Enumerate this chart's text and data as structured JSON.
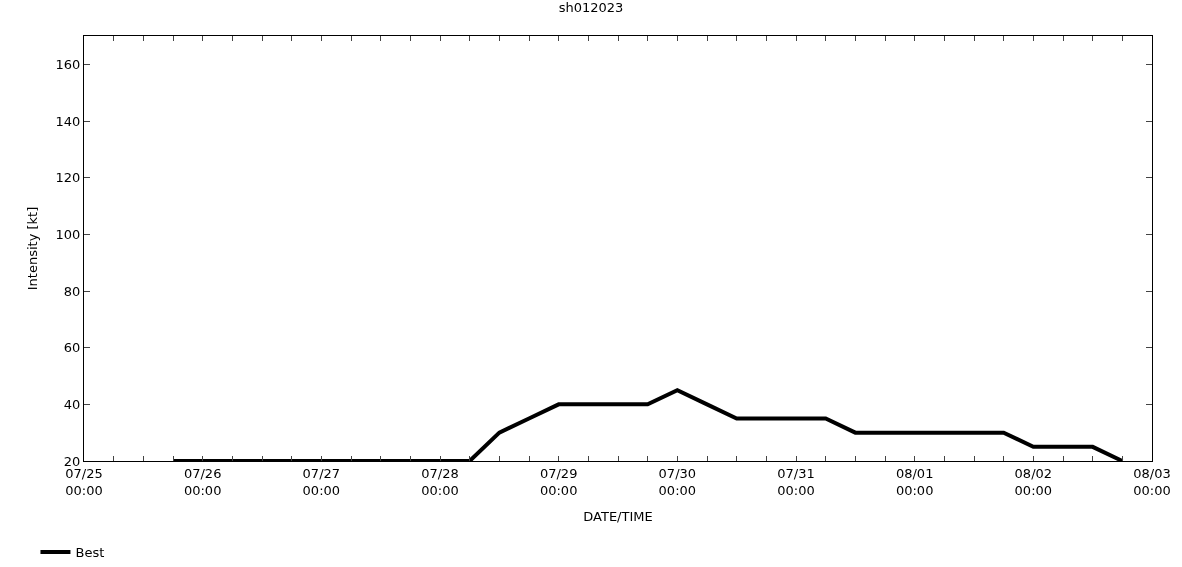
{
  "chart_data": {
    "type": "line",
    "title": "sh012023",
    "xlabel": "DATE/TIME",
    "ylabel": "Intensity [kt]",
    "x": [
      "--07-25T18:00",
      "--07-28T06:00",
      "--07-28T12:00",
      "--07-28T18:00",
      "--07-29T00:00",
      "--07-29T18:00",
      "--07-30T00:00",
      "--07-30T06:00",
      "--07-30T12:00",
      "--07-31T06:00",
      "--07-31T12:00",
      "--08-01T18:00",
      "--08-02T00:00",
      "--08-02T12:00",
      "--08-02T18:00"
    ],
    "series": [
      {
        "name": "Best",
        "color": "#000000",
        "values": [
          20,
          20,
          30,
          35,
          40,
          40,
          45,
          40,
          35,
          35,
          30,
          30,
          25,
          25,
          20
        ]
      }
    ],
    "xlim": [
      "--07-25T00:00",
      "--08-03T00:00"
    ],
    "xticks": [
      {
        "value": "--07-25T00:00",
        "label": "07/25\n00:00"
      },
      {
        "value": "--07-25T06:00",
        "label": null
      },
      {
        "value": "--07-25T12:00",
        "label": null
      },
      {
        "value": "--07-25T18:00",
        "label": null
      },
      {
        "value": "--07-26T00:00",
        "label": "07/26\n00:00"
      },
      {
        "value": "--07-26T06:00",
        "label": null
      },
      {
        "value": "--07-26T12:00",
        "label": null
      },
      {
        "value": "--07-26T18:00",
        "label": null
      },
      {
        "value": "--07-27T00:00",
        "label": "07/27\n00:00"
      },
      {
        "value": "--07-27T06:00",
        "label": null
      },
      {
        "value": "--07-27T12:00",
        "label": null
      },
      {
        "value": "--07-27T18:00",
        "label": null
      },
      {
        "value": "--07-28T00:00",
        "label": "07/28\n00:00"
      },
      {
        "value": "--07-28T06:00",
        "label": null
      },
      {
        "value": "--07-28T12:00",
        "label": null
      },
      {
        "value": "--07-28T18:00",
        "label": null
      },
      {
        "value": "--07-29T00:00",
        "label": "07/29\n00:00"
      },
      {
        "value": "--07-29T06:00",
        "label": null
      },
      {
        "value": "--07-29T12:00",
        "label": null
      },
      {
        "value": "--07-29T18:00",
        "label": null
      },
      {
        "value": "--07-30T00:00",
        "label": "07/30\n00:00"
      },
      {
        "value": "--07-30T06:00",
        "label": null
      },
      {
        "value": "--07-30T12:00",
        "label": null
      },
      {
        "value": "--07-30T18:00",
        "label": null
      },
      {
        "value": "--07-31T00:00",
        "label": "07/31\n00:00"
      },
      {
        "value": "--07-31T06:00",
        "label": null
      },
      {
        "value": "--07-31T12:00",
        "label": null
      },
      {
        "value": "--07-31T18:00",
        "label": null
      },
      {
        "value": "--08-01T00:00",
        "label": "08/01\n00:00"
      },
      {
        "value": "--08-01T06:00",
        "label": null
      },
      {
        "value": "--08-01T12:00",
        "label": null
      },
      {
        "value": "--08-01T18:00",
        "label": null
      },
      {
        "value": "--08-02T00:00",
        "label": "08/02\n00:00"
      },
      {
        "value": "--08-02T06:00",
        "label": null
      },
      {
        "value": "--08-02T12:00",
        "label": null
      },
      {
        "value": "--08-02T18:00",
        "label": null
      },
      {
        "value": "--08-03T00:00",
        "label": "08/03\n00:00"
      }
    ],
    "ylim": [
      20,
      170
    ],
    "yticks": [
      20,
      40,
      60,
      80,
      100,
      120,
      140,
      160
    ],
    "legend": "bottom left",
    "marker": "none",
    "line_style": "solid"
  }
}
